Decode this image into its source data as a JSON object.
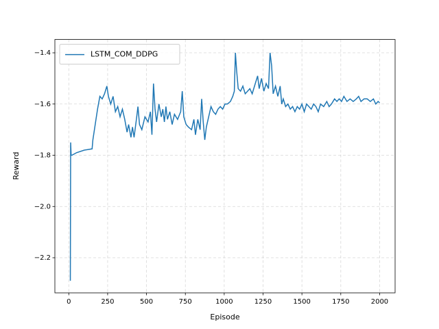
{
  "chart_data": {
    "type": "line",
    "x_label": "Episode",
    "y_label": "Reward",
    "x": [
      10,
      12,
      15,
      20,
      50,
      100,
      150,
      155,
      170,
      185,
      200,
      215,
      230,
      245,
      255,
      270,
      285,
      300,
      315,
      330,
      345,
      360,
      375,
      385,
      400,
      410,
      420,
      435,
      445,
      455,
      470,
      490,
      510,
      525,
      535,
      545,
      555,
      565,
      580,
      595,
      605,
      615,
      625,
      635,
      650,
      665,
      680,
      700,
      720,
      730,
      740,
      755,
      770,
      790,
      805,
      815,
      830,
      845,
      855,
      865,
      875,
      885,
      900,
      915,
      930,
      945,
      960,
      975,
      990,
      1005,
      1020,
      1040,
      1055,
      1065,
      1072,
      1080,
      1090,
      1105,
      1120,
      1135,
      1150,
      1165,
      1180,
      1200,
      1215,
      1225,
      1240,
      1255,
      1270,
      1285,
      1295,
      1305,
      1315,
      1330,
      1345,
      1360,
      1370,
      1380,
      1395,
      1410,
      1425,
      1440,
      1455,
      1470,
      1485,
      1500,
      1515,
      1530,
      1545,
      1560,
      1575,
      1590,
      1605,
      1620,
      1640,
      1660,
      1675,
      1690,
      1710,
      1725,
      1740,
      1755,
      1770,
      1790,
      1810,
      1830,
      1850,
      1865,
      1880,
      1900,
      1920,
      1940,
      1960,
      1975,
      1990,
      2000
    ],
    "series": [
      {
        "name": "LSTM_COM_DDPG",
        "color": "#1f77b4",
        "values": [
          -2.29,
          -1.75,
          -1.8,
          -1.8,
          -1.79,
          -1.78,
          -1.775,
          -1.74,
          -1.68,
          -1.62,
          -1.57,
          -1.58,
          -1.56,
          -1.53,
          -1.57,
          -1.6,
          -1.57,
          -1.63,
          -1.61,
          -1.65,
          -1.62,
          -1.66,
          -1.71,
          -1.68,
          -1.73,
          -1.69,
          -1.73,
          -1.66,
          -1.61,
          -1.68,
          -1.7,
          -1.65,
          -1.67,
          -1.63,
          -1.72,
          -1.52,
          -1.62,
          -1.67,
          -1.6,
          -1.65,
          -1.62,
          -1.67,
          -1.61,
          -1.66,
          -1.63,
          -1.68,
          -1.64,
          -1.66,
          -1.63,
          -1.55,
          -1.65,
          -1.68,
          -1.69,
          -1.7,
          -1.66,
          -1.72,
          -1.66,
          -1.7,
          -1.58,
          -1.67,
          -1.74,
          -1.69,
          -1.65,
          -1.61,
          -1.63,
          -1.64,
          -1.62,
          -1.61,
          -1.62,
          -1.6,
          -1.6,
          -1.59,
          -1.57,
          -1.55,
          -1.4,
          -1.47,
          -1.54,
          -1.55,
          -1.53,
          -1.56,
          -1.55,
          -1.54,
          -1.56,
          -1.52,
          -1.49,
          -1.54,
          -1.5,
          -1.55,
          -1.52,
          -1.54,
          -1.4,
          -1.45,
          -1.56,
          -1.53,
          -1.57,
          -1.53,
          -1.6,
          -1.58,
          -1.61,
          -1.6,
          -1.62,
          -1.61,
          -1.63,
          -1.61,
          -1.62,
          -1.6,
          -1.63,
          -1.6,
          -1.61,
          -1.62,
          -1.6,
          -1.61,
          -1.63,
          -1.6,
          -1.61,
          -1.59,
          -1.61,
          -1.6,
          -1.58,
          -1.59,
          -1.58,
          -1.59,
          -1.57,
          -1.59,
          -1.58,
          -1.59,
          -1.58,
          -1.57,
          -1.59,
          -1.58,
          -1.58,
          -1.59,
          -1.58,
          -1.6,
          -1.59,
          -1.595
        ]
      }
    ],
    "xlim": [
      -89.5,
      2099.5
    ],
    "xticks": [
      0,
      250,
      500,
      750,
      1000,
      1250,
      1500,
      1750,
      2000
    ],
    "ylim": [
      -2.337,
      -1.348
    ],
    "yticks": [
      {
        "value": -2.2,
        "label": "−2.2"
      },
      {
        "value": -2.0,
        "label": "−2.0"
      },
      {
        "value": -1.8,
        "label": "−1.8"
      },
      {
        "value": -1.6,
        "label": "−1.6"
      },
      {
        "value": -1.4,
        "label": "−1.4"
      }
    ],
    "grid": true,
    "legend": "upper left"
  }
}
